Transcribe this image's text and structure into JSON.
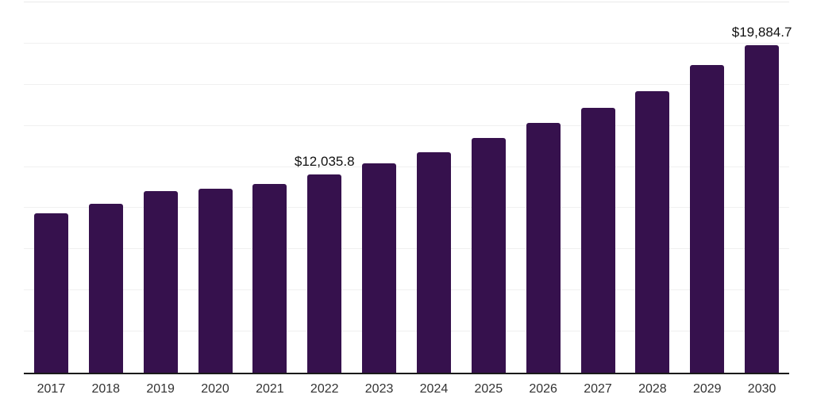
{
  "chart_data": {
    "type": "bar",
    "categories": [
      "2017",
      "2018",
      "2019",
      "2020",
      "2021",
      "2022",
      "2023",
      "2024",
      "2025",
      "2026",
      "2027",
      "2028",
      "2029",
      "2030"
    ],
    "values": [
      9680,
      10240,
      11010,
      11200,
      11490,
      12035.8,
      12720,
      13390,
      14280,
      15200,
      16080,
      17120,
      18670,
      19884.7
    ],
    "point_labels": {
      "2022": "$12,035.8",
      "2030": "$19,884.7"
    },
    "title": "",
    "xlabel": "",
    "ylabel": "",
    "ylim": [
      0,
      22500
    ],
    "gridline_step": 2500,
    "grid_on": true,
    "legend": "none",
    "colors": {
      "bar": "#36114D",
      "gridline": "#f0f0f0",
      "top_gridline": "#e9e9e9",
      "axis_line": "#1a1a1a",
      "value_label": "#111111",
      "tick_label": "#333333",
      "background": "#ffffff"
    }
  }
}
